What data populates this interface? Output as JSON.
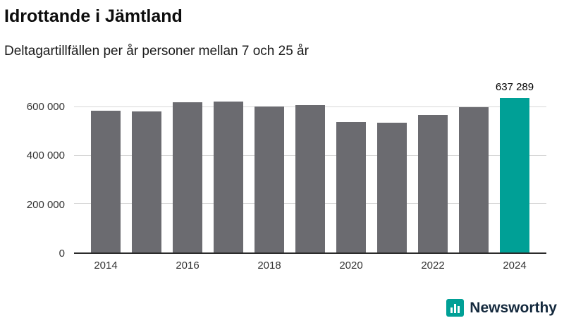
{
  "header": {
    "title": "Idrottande i Jämtland",
    "subtitle": "Deltagartillfällen per år personer mellan 7 och 25 år"
  },
  "chart_data": {
    "type": "bar",
    "title": "Idrottande i Jämtland",
    "subtitle": "Deltagartillfällen per år personer mellan 7 och 25 år",
    "categories": [
      2014,
      2015,
      2016,
      2017,
      2018,
      2019,
      2020,
      2021,
      2022,
      2023,
      2024
    ],
    "values": [
      585000,
      582000,
      620000,
      622000,
      602000,
      610000,
      538000,
      535000,
      567000,
      600000,
      637289
    ],
    "highlight_index": 10,
    "annotation": {
      "index": 10,
      "text": "637 289"
    },
    "bar_color": "#6b6b70",
    "highlight_color": "#00a096",
    "ylim": [
      0,
      650000
    ],
    "yticks": [
      0,
      200000,
      400000,
      600000
    ],
    "ytick_labels": [
      "0",
      "200 000",
      "400 000",
      "600 000"
    ],
    "xtick_labels": [
      "2014",
      "2016",
      "2018",
      "2020",
      "2022",
      "2024"
    ],
    "grid": true,
    "xlabel": "",
    "ylabel": "",
    "legend": "none"
  },
  "branding": {
    "logo_text": "Newsworthy",
    "logo_color": "#00a096",
    "logo_text_color": "#14293d"
  }
}
